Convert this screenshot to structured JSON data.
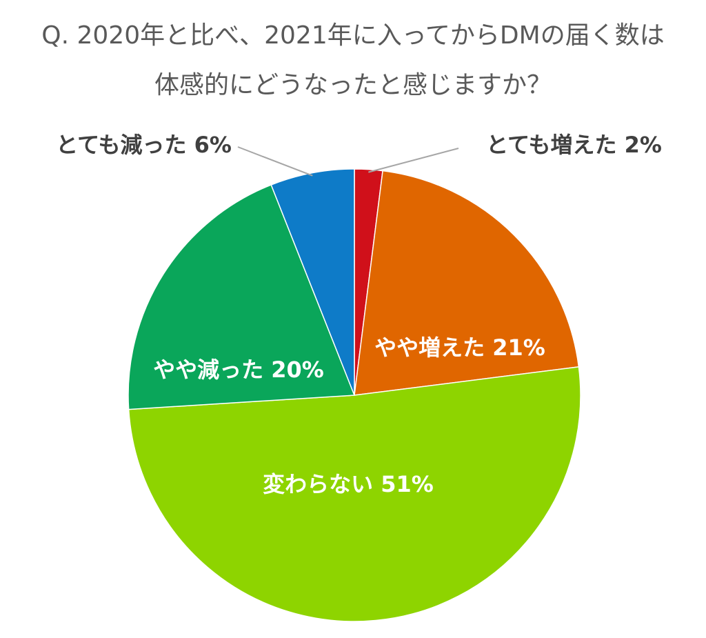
{
  "chart_data": {
    "type": "pie",
    "title_lines": [
      "Q. 2020年と比べ、2021年に入ってからDMの届く数は",
      "体感的にどうなったと感じますか？"
    ],
    "slices": [
      {
        "label": "とても増えた",
        "value": 2,
        "display": "とても増えた 2%",
        "color": "#D0101A"
      },
      {
        "label": "やや増えた",
        "value": 21,
        "display": "やや増えた 21%",
        "color": "#E06600"
      },
      {
        "label": "変わらない",
        "value": 51,
        "display": "変わらない 51%",
        "color": "#8ED400"
      },
      {
        "label": "やや減った",
        "value": 20,
        "display": "やや減った 20%",
        "color": "#0AA65A"
      },
      {
        "label": "とても減った",
        "value": 6,
        "display": "とても減った 6%",
        "color": "#0E7BC8"
      }
    ],
    "start_angle": "12 o'clock",
    "direction": "clockwise",
    "unit": "%"
  }
}
